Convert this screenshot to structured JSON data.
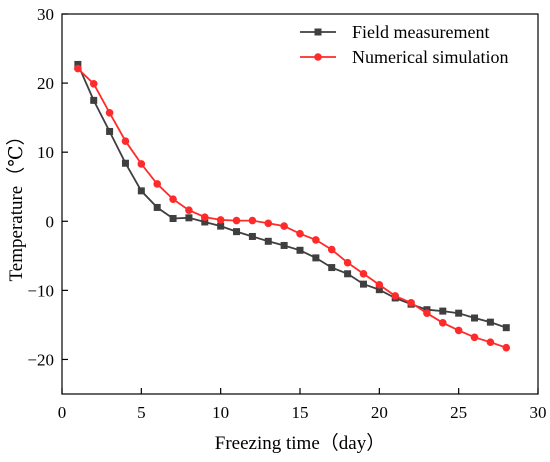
{
  "chart_data": {
    "type": "line",
    "xlabel": "Freezing time（day）",
    "ylabel": "Temperature（℃）",
    "xlim": [
      0,
      30
    ],
    "ylim": [
      -25,
      30
    ],
    "x_ticks": [
      0,
      5,
      10,
      15,
      20,
      25,
      30
    ],
    "y_ticks": [
      -20,
      -10,
      0,
      10,
      20,
      30
    ],
    "grid": false,
    "legend_position": "top-right",
    "x": [
      1,
      2,
      3,
      4,
      5,
      6,
      7,
      8,
      9,
      10,
      11,
      12,
      13,
      14,
      15,
      16,
      17,
      18,
      19,
      20,
      21,
      22,
      23,
      24,
      25,
      26,
      27,
      28
    ],
    "series": [
      {
        "name": "Field measurement",
        "color": "#3f3f3f",
        "marker": "square",
        "values": [
          22.7,
          17.5,
          13.0,
          8.4,
          4.4,
          2.0,
          0.4,
          0.5,
          -0.1,
          -0.7,
          -1.5,
          -2.2,
          -2.9,
          -3.5,
          -4.2,
          -5.3,
          -6.7,
          -7.6,
          -9.1,
          -9.9,
          -11.1,
          -12.0,
          -12.8,
          -13.0,
          -13.3,
          -14.0,
          -14.6,
          -15.4
        ]
      },
      {
        "name": "Numerical simulation",
        "color": "#ff2a2a",
        "marker": "circle",
        "values": [
          22.1,
          19.9,
          15.7,
          11.6,
          8.3,
          5.4,
          3.2,
          1.6,
          0.6,
          0.2,
          0.1,
          0.1,
          -0.3,
          -0.7,
          -1.8,
          -2.7,
          -4.1,
          -6.0,
          -7.6,
          -9.2,
          -10.8,
          -11.8,
          -13.3,
          -14.7,
          -15.8,
          -16.8,
          -17.5,
          -18.3
        ]
      }
    ]
  }
}
